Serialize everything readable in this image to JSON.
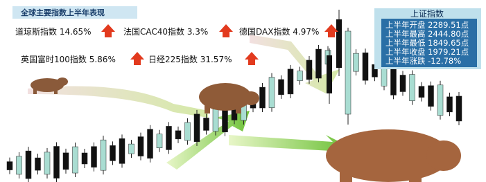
{
  "title": "全球主要指数上半年表现",
  "indices": [
    "道琼斯指数 14.65%",
    "法国CAC40指数 3.3%",
    "德国DAX指数 4.97%",
    "英国富时100指数 5.86%",
    "日经225指数 31.57%"
  ],
  "panel": {
    "title": "上证指数",
    "rows": [
      "上半年开盘 2289.51点",
      "上半年最高 2444.80点",
      "上半年最低 1849.65点",
      "上半年收盘 1979.21点",
      "上半年涨跌 -12.78%"
    ]
  }
}
